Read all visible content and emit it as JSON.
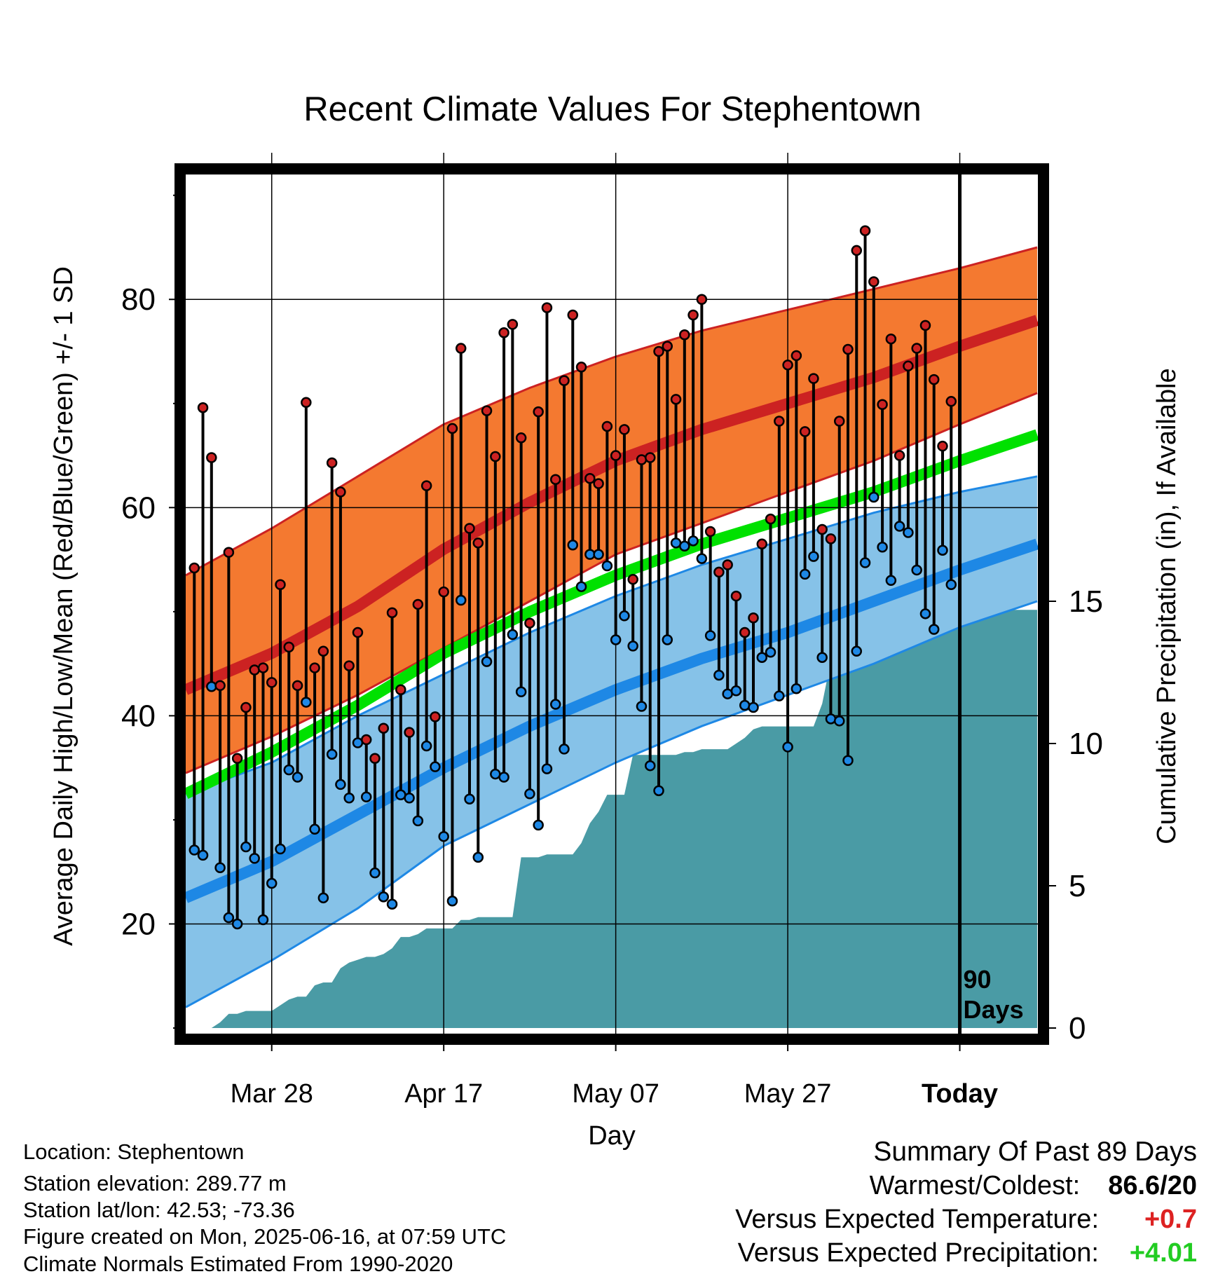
{
  "title": "Recent Climate Values For Stephentown",
  "colors": {
    "high": "#cc2222",
    "high_band": "#f47930",
    "low": "#1e88e5",
    "low_band": "#86c2e8",
    "mean": "#00e100",
    "precip": "#4a9ba5",
    "pos_temp": "#dd2222",
    "pos_precip": "#22cc22"
  },
  "chart_data": {
    "type": "line",
    "title": "Recent Climate Values For Stephentown",
    "xlabel": "Day",
    "ylabel_left": "Average Daily High/Low/Mean (Red/Blue/Green) +/- 1 SD",
    "ylabel_right": "Cumulative Precipitation (in), If Available",
    "ylim_left": [
      10,
      92
    ],
    "ylim_right": [
      0,
      30
    ],
    "x_range": [
      -90,
      9
    ],
    "x_ticks": [
      {
        "x": -80,
        "label": "Mar 28"
      },
      {
        "x": -60,
        "label": "Apr 17"
      },
      {
        "x": -40,
        "label": "May 07"
      },
      {
        "x": -20,
        "label": "May 27"
      },
      {
        "x": 0,
        "label": "Today"
      }
    ],
    "y_ticks_left": [
      20,
      40,
      60,
      80
    ],
    "y_ticks_right": [
      0,
      5,
      10,
      15
    ],
    "today_marker_label": [
      "90",
      "Days"
    ],
    "grid": true,
    "normals_x": [
      -90,
      -80,
      -70,
      -60,
      -50,
      -40,
      -30,
      -20,
      -10,
      0,
      9
    ],
    "normal_high": [
      42.5,
      46,
      50.5,
      56,
      60.5,
      64.5,
      67.5,
      70,
      72.5,
      75.5,
      78
    ],
    "normal_high_upper": [
      53.5,
      58,
      63,
      68,
      71.5,
      74.5,
      77,
      79,
      81,
      83,
      85
    ],
    "normal_high_lower": [
      34.5,
      38,
      42,
      46.5,
      51,
      55.5,
      58.5,
      61.5,
      64.5,
      68,
      71
    ],
    "normal_low": [
      22.5,
      26,
      30.5,
      35,
      39,
      42.5,
      45.5,
      48,
      51,
      54,
      56.5
    ],
    "normal_low_upper": [
      32.5,
      35.5,
      40,
      44,
      48,
      51.5,
      54.5,
      57,
      59.5,
      61.5,
      63
    ],
    "normal_low_lower": [
      12,
      16.5,
      21.5,
      27.5,
      31.5,
      35.5,
      39,
      42,
      45,
      48.5,
      51
    ],
    "normal_mean": [
      32.5,
      36.5,
      41,
      46,
      50,
      53.5,
      56.5,
      59,
      61.5,
      64.5,
      67
    ],
    "daily_x": [
      -89,
      -88,
      -87,
      -86,
      -85,
      -84,
      -83,
      -82,
      -81,
      -80,
      -79,
      -78,
      -77,
      -76,
      -75,
      -74,
      -73,
      -72,
      -71,
      -70,
      -69,
      -68,
      -67,
      -66,
      -65,
      -64,
      -63,
      -62,
      -61,
      -60,
      -59,
      -58,
      -57,
      -56,
      -55,
      -54,
      -53,
      -52,
      -51,
      -50,
      -49,
      -48,
      -47,
      -46,
      -45,
      -44,
      -43,
      -42,
      -41,
      -40,
      -39,
      -38,
      -37,
      -36,
      -35,
      -34,
      -33,
      -32,
      -31,
      -30,
      -29,
      -28,
      -27,
      -26,
      -25,
      -24,
      -23,
      -22,
      -21,
      -20,
      -19,
      -18,
      -17,
      -16,
      -15,
      -14,
      -13,
      -12,
      -11,
      -10,
      -9,
      -8,
      -7,
      -6,
      -5,
      -4,
      -3,
      -2,
      -1
    ],
    "daily_high": [
      54.2,
      69.6,
      64.8,
      42.9,
      55.7,
      35.9,
      40.8,
      44.4,
      44.6,
      43.2,
      52.6,
      46.6,
      42.9,
      70.1,
      44.6,
      46.2,
      64.3,
      61.5,
      44.8,
      48.0,
      37.7,
      35.9,
      38.8,
      49.9,
      42.5,
      38.4,
      50.7,
      62.1,
      39.9,
      51.9,
      67.6,
      75.3,
      58.0,
      56.6,
      69.3,
      64.9,
      76.8,
      77.6,
      66.7,
      48.9,
      69.2,
      79.2,
      62.7,
      72.2,
      78.5,
      73.5,
      62.8,
      62.3,
      67.8,
      65.0,
      67.5,
      53.1,
      64.6,
      64.8,
      75.0,
      75.5,
      70.4,
      76.6,
      78.5,
      80.0,
      57.7,
      53.8,
      54.5,
      51.5,
      48.0,
      49.4,
      56.5,
      58.9,
      68.3,
      73.7,
      74.6,
      67.3,
      72.4,
      57.9,
      57.0,
      68.3,
      75.2,
      84.7,
      86.6,
      81.7,
      69.9,
      76.2,
      65.0,
      73.6,
      75.3,
      77.5,
      72.3,
      65.9,
      70.2
    ],
    "daily_low": [
      27.1,
      26.6,
      42.8,
      25.4,
      20.6,
      20.0,
      27.4,
      26.3,
      20.4,
      23.9,
      27.2,
      34.8,
      34.1,
      41.3,
      29.1,
      22.5,
      36.3,
      33.4,
      32.1,
      37.4,
      32.2,
      24.9,
      22.6,
      21.9,
      32.4,
      32.1,
      29.9,
      37.1,
      35.1,
      28.4,
      22.2,
      51.1,
      32.0,
      26.4,
      45.2,
      34.4,
      34.1,
      47.8,
      42.3,
      32.5,
      29.5,
      34.9,
      41.1,
      36.8,
      56.4,
      52.4,
      55.5,
      55.5,
      54.4,
      47.3,
      49.6,
      46.7,
      40.9,
      35.2,
      32.8,
      47.3,
      56.6,
      56.3,
      56.8,
      55.1,
      47.7,
      43.9,
      42.1,
      42.4,
      41.0,
      40.8,
      45.6,
      46.1,
      41.9,
      37.0,
      42.6,
      53.6,
      55.3,
      45.6,
      39.7,
      39.5,
      35.7,
      46.2,
      54.7,
      61.0,
      56.2,
      53.0,
      58.2,
      57.6,
      54.0,
      49.8,
      48.3,
      55.9,
      52.6
    ],
    "precip_x": [
      -89,
      -88,
      -87,
      -86,
      -85,
      -84,
      -83,
      -82,
      -81,
      -80,
      -79,
      -78,
      -77,
      -76,
      -75,
      -74,
      -73,
      -72,
      -71,
      -70,
      -69,
      -68,
      -67,
      -66,
      -65,
      -64,
      -63,
      -62,
      -61,
      -60,
      -59,
      -58,
      -57,
      -56,
      -55,
      -54,
      -53,
      -52,
      -51,
      -50,
      -49,
      -48,
      -47,
      -46,
      -45,
      -44,
      -43,
      -42,
      -41,
      -40,
      -39,
      -38,
      -37,
      -36,
      -35,
      -34,
      -33,
      -32,
      -31,
      -30,
      -29,
      -28,
      -27,
      -26,
      -25,
      -24,
      -23,
      -22,
      -21,
      -20,
      -19,
      -18,
      -17,
      -16,
      -15,
      -14,
      -13,
      -12,
      -11,
      -10,
      -9,
      -8,
      -7,
      -6,
      -5,
      -4,
      -3,
      -2,
      -1,
      0,
      9
    ],
    "precip_cum": [
      0.0,
      0.0,
      0.0,
      0.2,
      0.5,
      0.5,
      0.6,
      0.6,
      0.6,
      0.6,
      0.8,
      1.0,
      1.1,
      1.1,
      1.5,
      1.6,
      1.6,
      2.1,
      2.3,
      2.4,
      2.5,
      2.5,
      2.6,
      2.8,
      3.2,
      3.2,
      3.3,
      3.5,
      3.5,
      3.5,
      3.5,
      3.8,
      3.8,
      3.9,
      3.9,
      3.9,
      3.9,
      3.9,
      6.0,
      6.0,
      6.0,
      6.1,
      6.1,
      6.1,
      6.1,
      6.5,
      7.2,
      7.6,
      8.2,
      8.2,
      8.2,
      9.6,
      9.6,
      9.6,
      9.6,
      9.6,
      9.6,
      9.7,
      9.7,
      9.8,
      9.8,
      9.8,
      9.8,
      10.0,
      10.2,
      10.5,
      10.6,
      10.6,
      10.6,
      10.6,
      10.6,
      10.6,
      10.6,
      11.4,
      12.9,
      12.9,
      12.9,
      12.9,
      12.9,
      13.4,
      13.6,
      14.1,
      14.1,
      14.2,
      14.4,
      14.4,
      14.4,
      14.4,
      14.7,
      14.7,
      14.7
    ]
  },
  "footer": {
    "location": "Location: Stephentown",
    "elevation": "Station elevation: 289.77 m",
    "latlon": "Station lat/lon: 42.53; -73.36",
    "created": "Figure created on Mon, 2025-06-16, at 07:59 UTC",
    "normals": "Climate Normals Estimated From 1990-2020"
  },
  "summary": {
    "heading": "Summary Of Past 89 Days",
    "warmest_coldest_label": "Warmest/Coldest:",
    "warmest_coldest_value": "86.6/20",
    "temp_label": "Versus Expected Temperature:",
    "temp_value": "+0.7",
    "precip_label": "Versus Expected Precipitation:",
    "precip_value": "+4.01"
  }
}
